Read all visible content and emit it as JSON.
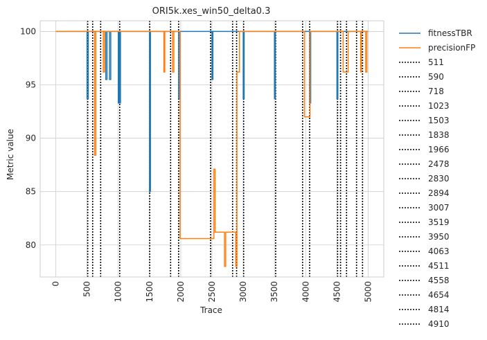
{
  "chart_data": {
    "type": "line",
    "title": "ORI5k.xes_win50_delta0.3",
    "xlabel": "Trace",
    "ylabel": "Metric value",
    "xlim": [
      -250,
      5250
    ],
    "ylim": [
      77,
      101
    ],
    "x_ticks": [
      0,
      500,
      1000,
      1500,
      2000,
      2500,
      3000,
      3500,
      4000,
      4500,
      5000
    ],
    "y_ticks": [
      80,
      85,
      90,
      95,
      100
    ],
    "grid": true,
    "legend_position": "outside-right",
    "series": [
      {
        "name": "fitnessTBR",
        "color": "#1f77b4",
        "points": [
          [
            0,
            100
          ],
          [
            500,
            100
          ],
          [
            500,
            93.7
          ],
          [
            520,
            93.7
          ],
          [
            520,
            100
          ],
          [
            800,
            100
          ],
          [
            800,
            95.5
          ],
          [
            820,
            95.5
          ],
          [
            820,
            100
          ],
          [
            860,
            100
          ],
          [
            860,
            95.5
          ],
          [
            880,
            95.5
          ],
          [
            880,
            100
          ],
          [
            1000,
            100
          ],
          [
            1000,
            93.3
          ],
          [
            1010,
            93.3
          ],
          [
            1010,
            100
          ],
          [
            1023,
            100
          ],
          [
            1023,
            93.3
          ],
          [
            1035,
            93.3
          ],
          [
            1035,
            100
          ],
          [
            1500,
            100
          ],
          [
            1500,
            85
          ],
          [
            1515,
            85
          ],
          [
            1515,
            100
          ],
          [
            1966,
            100
          ],
          [
            1966,
            93.7
          ],
          [
            1985,
            93.7
          ],
          [
            1985,
            100
          ],
          [
            2500,
            100
          ],
          [
            2500,
            95.5
          ],
          [
            2515,
            95.5
          ],
          [
            2515,
            100
          ],
          [
            3000,
            100
          ],
          [
            3000,
            93.7
          ],
          [
            3015,
            93.7
          ],
          [
            3015,
            100
          ],
          [
            3500,
            100
          ],
          [
            3500,
            93.7
          ],
          [
            3515,
            93.7
          ],
          [
            3515,
            100
          ],
          [
            4063,
            100
          ],
          [
            4063,
            93.3
          ],
          [
            4080,
            93.3
          ],
          [
            4080,
            100
          ],
          [
            4500,
            100
          ],
          [
            4500,
            93.7
          ],
          [
            4515,
            93.7
          ],
          [
            4515,
            100
          ],
          [
            5000,
            100
          ]
        ]
      },
      {
        "name": "precisionFP",
        "color": "#ff7f0e",
        "points": [
          [
            0,
            100
          ],
          [
            620,
            100
          ],
          [
            620,
            88.4
          ],
          [
            640,
            88.4
          ],
          [
            640,
            100
          ],
          [
            760,
            100
          ],
          [
            760,
            96.2
          ],
          [
            780,
            96.2
          ],
          [
            780,
            100
          ],
          [
            1730,
            100
          ],
          [
            1730,
            96.2
          ],
          [
            1745,
            96.2
          ],
          [
            1745,
            100
          ],
          [
            1870,
            100
          ],
          [
            1870,
            96.2
          ],
          [
            1890,
            96.2
          ],
          [
            1890,
            100
          ],
          [
            1990,
            100
          ],
          [
            1990,
            80.6
          ],
          [
            2530,
            80.6
          ],
          [
            2530,
            87.1
          ],
          [
            2550,
            87.1
          ],
          [
            2550,
            81.2
          ],
          [
            2700,
            81.2
          ],
          [
            2700,
            78
          ],
          [
            2720,
            78
          ],
          [
            2720,
            81.2
          ],
          [
            2880,
            81.2
          ],
          [
            2880,
            78
          ],
          [
            2900,
            78
          ],
          [
            2900,
            96.2
          ],
          [
            2940,
            96.2
          ],
          [
            2940,
            100
          ],
          [
            3980,
            100
          ],
          [
            3980,
            92
          ],
          [
            4070,
            92
          ],
          [
            4070,
            100
          ],
          [
            4600,
            100
          ],
          [
            4600,
            96.2
          ],
          [
            4680,
            96.2
          ],
          [
            4680,
            100
          ],
          [
            4880,
            100
          ],
          [
            4880,
            96.2
          ],
          [
            4890,
            96.2
          ],
          [
            4890,
            100
          ],
          [
            4960,
            100
          ],
          [
            4960,
            96.2
          ],
          [
            4980,
            96.2
          ],
          [
            4980,
            100
          ],
          [
            5000,
            100
          ]
        ]
      }
    ],
    "vlines": [
      511,
      590,
      718,
      1023,
      1503,
      1838,
      1966,
      2478,
      2830,
      2894,
      3007,
      3519,
      3950,
      4063,
      4511,
      4558,
      4654,
      4814,
      4910
    ],
    "vline_style": "dotted",
    "vline_color": "#000000"
  }
}
